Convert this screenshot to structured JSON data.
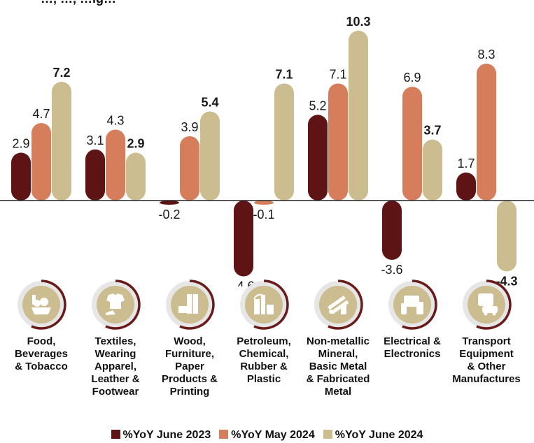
{
  "header": {
    "partial_title": "…, …, …ig…"
  },
  "chart_data": {
    "type": "bar",
    "categories": [
      "Food, Beverages & Tobacco",
      "Textiles, Wearing Apparel, Leather & Footwear",
      "Wood, Furniture, Paper Products & Printing",
      "Petroleum, Chemical, Rubber & Plastic",
      "Non-metallic Mineral, Basic Metal & Fabricated Metal",
      "Electrical & Electronics",
      "Transport Equipment & Other Manufactures"
    ],
    "category_lines": [
      [
        "Food,",
        "Beverages",
        "& Tobacco"
      ],
      [
        "Textiles,",
        "Wearing",
        "Apparel,",
        "Leather &",
        "Footwear"
      ],
      [
        "Wood,",
        "Furniture,",
        "Paper",
        "Products &",
        "Printing"
      ],
      [
        "Petroleum,",
        "Chemical,",
        "Rubber &",
        "Plastic"
      ],
      [
        "Non-metallic",
        "Mineral,",
        "Basic Metal",
        "& Fabricated",
        "Metal"
      ],
      [
        "Electrical &",
        "Electronics"
      ],
      [
        "Transport",
        "Equipment",
        "& Other",
        "Manufactures"
      ]
    ],
    "icons": [
      "food-basket-icon",
      "shirt-shoe-icon",
      "furniture-icon",
      "refinery-icon",
      "metal-pipes-icon",
      "electronics-icon",
      "vehicles-icon"
    ],
    "series": [
      {
        "name": "%YoY June 2023",
        "color": "#5e1414",
        "values": [
          2.9,
          3.1,
          -0.2,
          -4.6,
          5.2,
          -3.6,
          1.7
        ],
        "labels": [
          "2.9",
          "3.1",
          "-0.2",
          "-4.6",
          "5.2",
          "-3.6",
          "1.7"
        ]
      },
      {
        "name": "%YoY May 2024",
        "color": "#d67d5c",
        "values": [
          4.7,
          4.3,
          3.9,
          -0.1,
          7.1,
          6.9,
          8.3
        ],
        "labels": [
          "4.7",
          "4.3",
          "3.9",
          "-0.1",
          "7.1",
          "6.9",
          "8.3"
        ]
      },
      {
        "name": "%YoY June 2024",
        "color": "#cbbd8f",
        "values": [
          7.2,
          2.9,
          5.4,
          7.1,
          10.3,
          3.7,
          -4.3
        ],
        "labels": [
          "7.2",
          "2.9",
          "5.4",
          "7.1",
          "10.3",
          "3.7",
          "-4.3"
        ],
        "bold_labels": true
      }
    ],
    "ylim": [
      -5.5,
      10.8
    ],
    "grid": false,
    "legend_position": "bottom-center",
    "xlabel": "",
    "ylabel": ""
  },
  "legend": {
    "items": [
      {
        "label": "%YoY June 2023",
        "color": "#5e1414"
      },
      {
        "label": "%YoY May 2024",
        "color": "#d67d5c"
      },
      {
        "label": "%YoY June 2024",
        "color": "#cbbd8f"
      }
    ]
  },
  "icon_style": {
    "ring_color": "#6b1a1a",
    "disc_color": "#cbbd8f",
    "halo_color": "#e6e6e6"
  }
}
